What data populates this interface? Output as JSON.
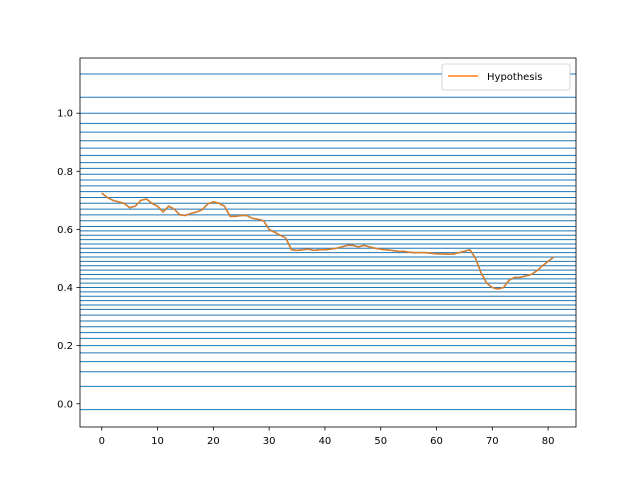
{
  "chart_data": {
    "type": "line",
    "xlim": [
      -3.9,
      85
    ],
    "ylim": [
      -0.08,
      1.19
    ],
    "xticks": [
      0,
      10,
      20,
      30,
      40,
      50,
      60,
      70,
      80
    ],
    "yticks": [
      0.0,
      0.2,
      0.4,
      0.6,
      0.8,
      1.0
    ],
    "ytick_labels": [
      "0.0",
      "0.2",
      "0.4",
      "0.6",
      "0.8",
      "1.0"
    ],
    "xtick_labels": [
      "0",
      "10",
      "20",
      "30",
      "40",
      "50",
      "60",
      "70",
      "80"
    ],
    "grid": false,
    "legend_position": "top-right",
    "hlines_color": "#1f77b4",
    "hlines": [
      1.135,
      1.055,
      1.0,
      0.965,
      0.935,
      0.905,
      0.88,
      0.855,
      0.83,
      0.81,
      0.79,
      0.77,
      0.75,
      0.73,
      0.71,
      0.69,
      0.67,
      0.65,
      0.63,
      0.61,
      0.595,
      0.58,
      0.565,
      0.55,
      0.535,
      0.52,
      0.505,
      0.49,
      0.475,
      0.46,
      0.445,
      0.43,
      0.415,
      0.4,
      0.385,
      0.37,
      0.355,
      0.34,
      0.325,
      0.305,
      0.285,
      0.265,
      0.245,
      0.225,
      0.2,
      0.175,
      0.145,
      0.11,
      0.06,
      -0.02
    ],
    "series": [
      {
        "name": "Hypothesis",
        "color": "#ff7f0e",
        "shadow_color": "#1f77b4",
        "x": [
          0,
          1,
          2,
          3,
          4,
          5,
          6,
          7,
          8,
          9,
          10,
          11,
          12,
          13,
          14,
          15,
          16,
          17,
          18,
          19,
          20,
          21,
          22,
          23,
          24,
          25,
          26,
          27,
          28,
          29,
          30,
          31,
          32,
          33,
          34,
          35,
          36,
          37,
          38,
          39,
          40,
          41,
          42,
          43,
          44,
          45,
          46,
          47,
          48,
          49,
          50,
          51,
          52,
          53,
          54,
          55,
          56,
          57,
          58,
          59,
          60,
          61,
          62,
          63,
          64,
          65,
          66,
          67,
          68,
          69,
          70,
          71,
          72,
          73,
          74,
          75,
          76,
          77,
          78,
          79,
          80,
          81
        ],
        "y": [
          0.725,
          0.71,
          0.7,
          0.695,
          0.69,
          0.675,
          0.68,
          0.7,
          0.705,
          0.69,
          0.68,
          0.66,
          0.68,
          0.67,
          0.65,
          0.648,
          0.655,
          0.66,
          0.668,
          0.688,
          0.695,
          0.69,
          0.68,
          0.645,
          0.645,
          0.648,
          0.648,
          0.638,
          0.635,
          0.63,
          0.6,
          0.59,
          0.58,
          0.57,
          0.53,
          0.528,
          0.53,
          0.532,
          0.528,
          0.53,
          0.53,
          0.532,
          0.535,
          0.54,
          0.545,
          0.545,
          0.54,
          0.545,
          0.54,
          0.535,
          0.532,
          0.53,
          0.528,
          0.525,
          0.525,
          0.522,
          0.52,
          0.52,
          0.52,
          0.518,
          0.516,
          0.516,
          0.515,
          0.515,
          0.52,
          0.525,
          0.53,
          0.5,
          0.45,
          0.415,
          0.4,
          0.395,
          0.4,
          0.425,
          0.435,
          0.435,
          0.44,
          0.445,
          0.458,
          0.475,
          0.49,
          0.505
        ]
      }
    ]
  }
}
